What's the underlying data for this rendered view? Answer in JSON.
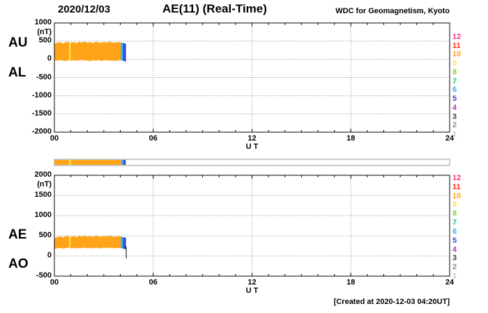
{
  "header": {
    "date": "2020/12/03",
    "title": "AE(11) (Real-Time)",
    "source": "WDC for Geomagnetism, Kyoto"
  },
  "footer": {
    "created": "[Created at 2020-12-03 04:20UT]"
  },
  "colors": {
    "fill_orange": "#ffa318",
    "stripe_yellow": "#ffe44d",
    "end_cyan": "#38b2e6",
    "end_blue": "#2f4fd8",
    "grid": "#888888",
    "frame": "#000000"
  },
  "station_legend": {
    "items": [
      {
        "label": "12",
        "color": "#ff2e8b"
      },
      {
        "label": "11",
        "color": "#ff2a1c"
      },
      {
        "label": "10",
        "color": "#ffa318"
      },
      {
        "label": "9",
        "color": "#ffe44d"
      },
      {
        "label": "8",
        "color": "#7fd41f"
      },
      {
        "label": "7",
        "color": "#19c57f"
      },
      {
        "label": "6",
        "color": "#35aaff"
      },
      {
        "label": "5",
        "color": "#3b45e0"
      },
      {
        "label": "4",
        "color": "#c32ccc"
      },
      {
        "label": "3",
        "color": "#3a3a3a"
      },
      {
        "label": "2",
        "color": "#8c8c8c"
      },
      {
        "label": "1",
        "color": "#c8c8c8"
      }
    ]
  },
  "chart_data": [
    {
      "type": "area",
      "name": "AU-AL",
      "xlabel": "U T",
      "ylabel": "(nT)",
      "xlim": [
        0,
        24
      ],
      "ylim": [
        -2000,
        1000
      ],
      "xticks": [
        0,
        6,
        12,
        18,
        24
      ],
      "xtick_labels": [
        "00",
        "06",
        "12",
        "18",
        "24"
      ],
      "yticks": [
        1000,
        500,
        0,
        -500,
        -1000,
        -1500,
        -2000
      ],
      "left_labels": [
        "AU",
        "AL"
      ],
      "grid": true,
      "x_hours": [
        0,
        0.167,
        0.333,
        0.5,
        0.667,
        0.833,
        1,
        1.167,
        1.333,
        1.5,
        1.667,
        1.833,
        2,
        2.167,
        2.333,
        2.5,
        2.667,
        2.833,
        3,
        3.167,
        3.333,
        3.5,
        3.667,
        3.833,
        4,
        4.167,
        4.333
      ],
      "series": [
        {
          "name": "AU",
          "values": [
            415,
            450,
            468,
            432,
            462,
            476,
            448,
            470,
            441,
            473,
            458,
            481,
            452,
            469,
            446,
            477,
            463,
            449,
            471,
            457,
            479,
            464,
            451,
            470,
            461,
            443,
            425
          ]
        },
        {
          "name": "AL",
          "values": [
            -18,
            -32,
            -12,
            -26,
            -41,
            -22,
            -35,
            -15,
            -29,
            -20,
            -11,
            -31,
            -24,
            -44,
            -19,
            -33,
            -14,
            -36,
            -27,
            -16,
            -30,
            -21,
            -39,
            -25,
            -17,
            -31,
            -58
          ]
        }
      ],
      "color_segments": [
        {
          "from": 0,
          "to": 0.9,
          "color_key": "fill_orange"
        },
        {
          "from": 0.9,
          "to": 1.0,
          "color_key": "stripe_yellow"
        },
        {
          "from": 1.0,
          "to": 4.05,
          "color_key": "fill_orange"
        },
        {
          "from": 4.05,
          "to": 4.18,
          "color_key": "end_cyan"
        },
        {
          "from": 4.18,
          "to": 4.333,
          "color_key": "end_blue"
        }
      ],
      "overlays": []
    },
    {
      "type": "area",
      "name": "AE-AO",
      "xlabel": "U T",
      "ylabel": "(nT)",
      "xlim": [
        0,
        24
      ],
      "ylim": [
        -500,
        2000
      ],
      "xticks": [
        0,
        6,
        12,
        18,
        24
      ],
      "xtick_labels": [
        "00",
        "06",
        "12",
        "18",
        "24"
      ],
      "yticks": [
        2000,
        1500,
        1000,
        500,
        0,
        -500
      ],
      "left_labels": [
        "AE",
        "AO"
      ],
      "grid": true,
      "x_hours": [
        0,
        0.167,
        0.333,
        0.5,
        0.667,
        0.833,
        1,
        1.167,
        1.333,
        1.5,
        1.667,
        1.833,
        2,
        2.167,
        2.333,
        2.5,
        2.667,
        2.833,
        3,
        3.167,
        3.333,
        3.5,
        3.667,
        3.833,
        4,
        4.167,
        4.333
      ],
      "series": [
        {
          "name": "AE",
          "values": [
            432,
            462,
            486,
            452,
            480,
            494,
            468,
            489,
            463,
            491,
            477,
            497,
            471,
            488,
            466,
            493,
            481,
            467,
            490,
            476,
            496,
            483,
            469,
            487,
            479,
            461,
            447
          ]
        },
        {
          "name": "AO",
          "values": [
            178,
            196,
            207,
            186,
            201,
            211,
            193,
            206,
            189,
            209,
            198,
            214,
            196,
            207,
            191,
            211,
            201,
            193,
            209,
            199,
            214,
            203,
            196,
            207,
            201,
            187,
            175
          ]
        }
      ],
      "color_segments": [
        {
          "from": 0,
          "to": 0.9,
          "color_key": "fill_orange"
        },
        {
          "from": 0.9,
          "to": 1.0,
          "color_key": "stripe_yellow"
        },
        {
          "from": 1.0,
          "to": 4.05,
          "color_key": "fill_orange"
        },
        {
          "from": 4.05,
          "to": 4.18,
          "color_key": "end_cyan"
        },
        {
          "from": 4.18,
          "to": 4.333,
          "color_key": "end_blue"
        }
      ],
      "overlays": [
        {
          "name": "AO-end-drop-line",
          "color": "#000000",
          "width": 1,
          "points": [
            [
              4.35,
              240
            ],
            [
              4.37,
              -60
            ]
          ]
        }
      ]
    }
  ],
  "availability_bar": {
    "xlim": [
      0,
      24
    ],
    "segments": [
      {
        "from": 0,
        "to": 0.9,
        "color_key": "fill_orange"
      },
      {
        "from": 0.9,
        "to": 1.0,
        "color_key": "stripe_yellow"
      },
      {
        "from": 1.0,
        "to": 4.05,
        "color_key": "fill_orange"
      },
      {
        "from": 4.05,
        "to": 4.18,
        "color_key": "end_cyan"
      },
      {
        "from": 4.18,
        "to": 4.333,
        "color_key": "end_blue"
      }
    ]
  }
}
